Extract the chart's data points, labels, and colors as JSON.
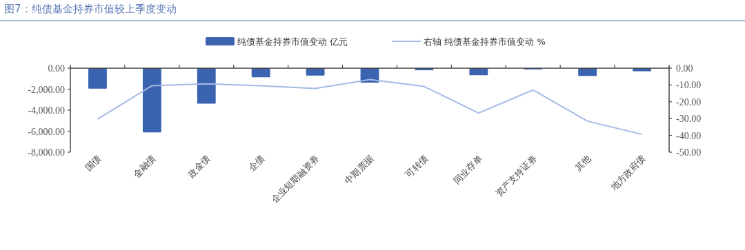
{
  "chart_data": {
    "type": "bar",
    "title": "图7：纯债基金持券市值较上季度变动",
    "categories": [
      "国债",
      "金融债",
      "政金债",
      "企债",
      "企业短期融资券",
      "中期票据",
      "可转债",
      "同业存单",
      "资产支持证券",
      "其他",
      "地方政府债"
    ],
    "series": [
      {
        "name": "纯债基金持券市值变动 亿元",
        "color": "#3a63b0",
        "values": [
          -1950,
          -6110,
          -3380,
          -870,
          -710,
          -1370,
          -190,
          -670,
          -120,
          -740,
          -300
        ]
      },
      {
        "name": "右轴 纯债基金持券市值变动 %",
        "type": "line",
        "axis": "y2",
        "color": "#a4b9e4",
        "values": [
          -30.3,
          -10.4,
          -9.3,
          -10.4,
          -12.1,
          -6.8,
          -10.9,
          -26.7,
          -13.0,
          -31.5,
          -39.4
        ]
      }
    ],
    "ylim": [
      -8000,
      0
    ],
    "yticks": [
      {
        "value": 0,
        "label": "0.00"
      },
      {
        "value": -2000,
        "label": "-2,000.00"
      },
      {
        "value": -4000,
        "label": "-4,000.00"
      },
      {
        "value": -6000,
        "label": "-6,000.00"
      },
      {
        "value": -8000,
        "label": "-8,000.00"
      }
    ],
    "y2lim": [
      -50,
      0
    ],
    "y2ticks": [
      {
        "value": 0,
        "label": "0.00"
      },
      {
        "value": -10,
        "label": "-10.00"
      },
      {
        "value": -20,
        "label": "-20.00"
      },
      {
        "value": -30,
        "label": "-30.00"
      },
      {
        "value": -40,
        "label": "-40.00"
      },
      {
        "value": -50,
        "label": "-50.00"
      }
    ],
    "legend": "top",
    "grid": false
  }
}
